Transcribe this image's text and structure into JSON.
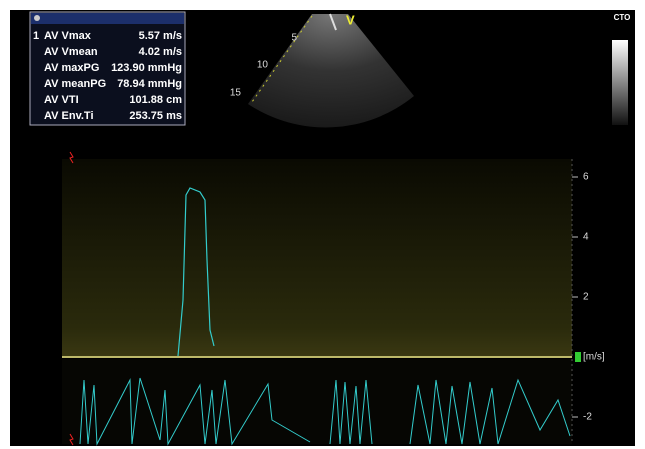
{
  "measurements": {
    "index": "1",
    "rows": [
      {
        "label": "AV Vmax",
        "value": "5.57 m/s"
      },
      {
        "label": "AV Vmean",
        "value": "4.02 m/s"
      },
      {
        "label": "AV maxPG",
        "value": "123.90 mmHg"
      },
      {
        "label": "AV meanPG",
        "value": "78.94 mmHg"
      },
      {
        "label": "AV VTI",
        "value": "101.88 cm"
      },
      {
        "label": "AV Env.Ti",
        "value": "253.75 ms"
      }
    ]
  },
  "probe": {
    "marker": "V",
    "depths": [
      5,
      10,
      15
    ]
  },
  "map_label": "CTO",
  "spectrum": {
    "unit": "[m/s]",
    "ylim": [
      -2.9,
      6.6
    ],
    "yticks": [
      6,
      4,
      2,
      -2
    ]
  }
}
